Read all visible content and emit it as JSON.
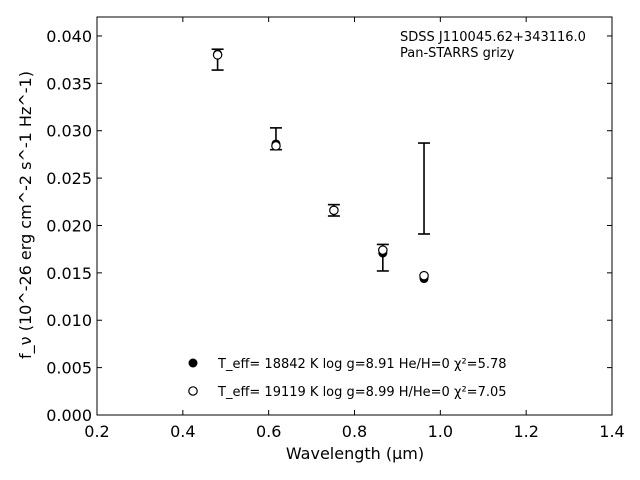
{
  "chart_data": {
    "type": "scatter",
    "title": "",
    "xlabel": "Wavelength (μm)",
    "ylabel": "f_ν (10^-26 erg cm^-2 s^-1 Hz^-1)",
    "xlim": [
      0.2,
      1.4
    ],
    "ylim": [
      0.0,
      0.042
    ],
    "xticks": [
      "0.2",
      "0.4",
      "0.6",
      "0.8",
      "1.0",
      "1.2",
      "1.4"
    ],
    "yticks": [
      "0.000",
      "0.005",
      "0.010",
      "0.015",
      "0.020",
      "0.025",
      "0.030",
      "0.035",
      "0.040"
    ],
    "grid": false,
    "annotation_lines": [
      "SDSS J110045.62+343116.0",
      "Pan-STARRS grizy"
    ],
    "observed": {
      "x": [
        0.481,
        0.617,
        0.752,
        0.866,
        0.962
      ],
      "y": [
        0.0375,
        0.0287,
        0.0216,
        0.0171,
        0.0239
      ],
      "yerr_low": [
        0.0364,
        0.028,
        0.021,
        0.0152,
        0.0191
      ],
      "yerr_high": [
        0.0386,
        0.0303,
        0.0222,
        0.018,
        0.0287
      ]
    },
    "series": [
      {
        "name": "T_eff= 18842 K  log g=8.91  He/H=0  χ²=5.78",
        "marker": "filled-circle",
        "x": [
          0.481,
          0.617,
          0.752,
          0.866,
          0.962
        ],
        "y": [
          0.0381,
          0.0286,
          0.0216,
          0.0171,
          0.0144
        ]
      },
      {
        "name": "T_eff= 19119 K  log g=8.99  H/He=0  χ²=7.05",
        "marker": "open-circle",
        "x": [
          0.481,
          0.617,
          0.752,
          0.866,
          0.962
        ],
        "y": [
          0.038,
          0.0284,
          0.0216,
          0.0174,
          0.0147
        ]
      }
    ]
  }
}
